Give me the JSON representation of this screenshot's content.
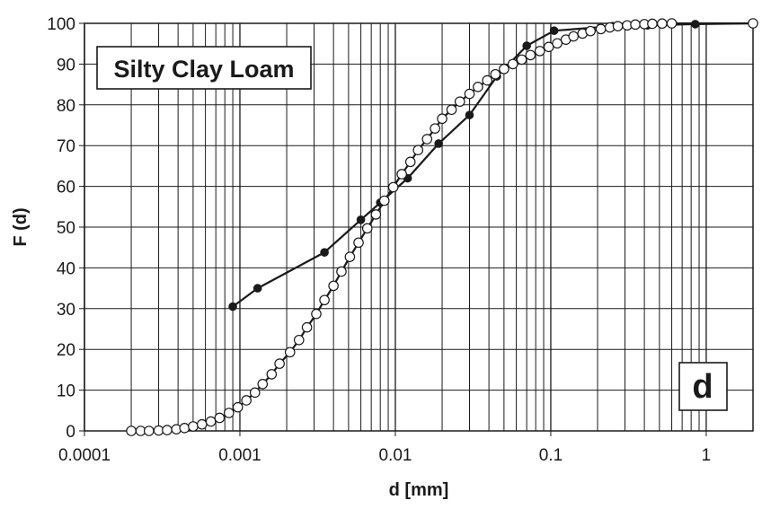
{
  "chart_data": {
    "type": "line",
    "title": "Silty Clay Loam",
    "panel_label": "d",
    "xlabel": "d [mm]",
    "ylabel": "F (d)",
    "xscale": "log",
    "xlim": [
      0.0001,
      2
    ],
    "ylim": [
      0,
      100
    ],
    "x_ticks": [
      {
        "value": 0.0001,
        "label": "0.0001"
      },
      {
        "value": 0.001,
        "label": "0.001"
      },
      {
        "value": 0.01,
        "label": "0.01"
      },
      {
        "value": 0.1,
        "label": "0.1"
      },
      {
        "value": 1,
        "label": "1"
      }
    ],
    "y_ticks": [
      0,
      10,
      20,
      30,
      40,
      50,
      60,
      70,
      80,
      90,
      100
    ],
    "grid": true,
    "series": [
      {
        "marker": "filled-circle",
        "color": "#1a1a1a",
        "x": [
          0.0009,
          0.0013,
          0.0035,
          0.006,
          0.008,
          0.012,
          0.019,
          0.03,
          0.045,
          0.07,
          0.105,
          0.25,
          0.42,
          0.85,
          2.0
        ],
        "y": [
          30.5,
          35,
          43.8,
          51.8,
          56,
          62,
          70.5,
          77.5,
          87,
          94.5,
          98.2,
          99.3,
          99.5,
          99.8,
          100
        ]
      },
      {
        "marker": "open-circle",
        "color": "#1a1a1a",
        "x": [
          0.0002,
          0.00023,
          0.00026,
          0.0003,
          0.00034,
          0.00039,
          0.00044,
          0.0005,
          0.00057,
          0.00065,
          0.00074,
          0.00085,
          0.00097,
          0.0011,
          0.00125,
          0.0014,
          0.0016,
          0.0018,
          0.0021,
          0.0024,
          0.0027,
          0.0031,
          0.0035,
          0.004,
          0.0045,
          0.0051,
          0.0058,
          0.0066,
          0.0075,
          0.0085,
          0.0097,
          0.011,
          0.0125,
          0.014,
          0.016,
          0.018,
          0.02,
          0.023,
          0.026,
          0.03,
          0.034,
          0.039,
          0.044,
          0.05,
          0.057,
          0.065,
          0.074,
          0.085,
          0.097,
          0.11,
          0.125,
          0.14,
          0.16,
          0.18,
          0.21,
          0.24,
          0.27,
          0.31,
          0.35,
          0.4,
          0.45,
          0.52,
          0.6,
          2.0
        ],
        "y": [
          0,
          0,
          0,
          0.1,
          0.2,
          0.4,
          0.7,
          1.1,
          1.6,
          2.3,
          3.2,
          4.4,
          5.8,
          7.5,
          9.4,
          11.5,
          13.9,
          16.5,
          19.3,
          22.3,
          25.4,
          28.7,
          32.1,
          35.6,
          39.1,
          42.7,
          46.2,
          49.7,
          53.1,
          56.5,
          59.8,
          63,
          66,
          68.9,
          71.6,
          74.2,
          76.6,
          78.8,
          80.8,
          82.7,
          84.4,
          86,
          87.5,
          88.8,
          90,
          91.1,
          92.2,
          93.2,
          94.2,
          95.1,
          96,
          96.8,
          97.5,
          98.1,
          98.6,
          99,
          99.3,
          99.5,
          99.7,
          99.8,
          99.9,
          99.95,
          100,
          100
        ]
      }
    ]
  }
}
